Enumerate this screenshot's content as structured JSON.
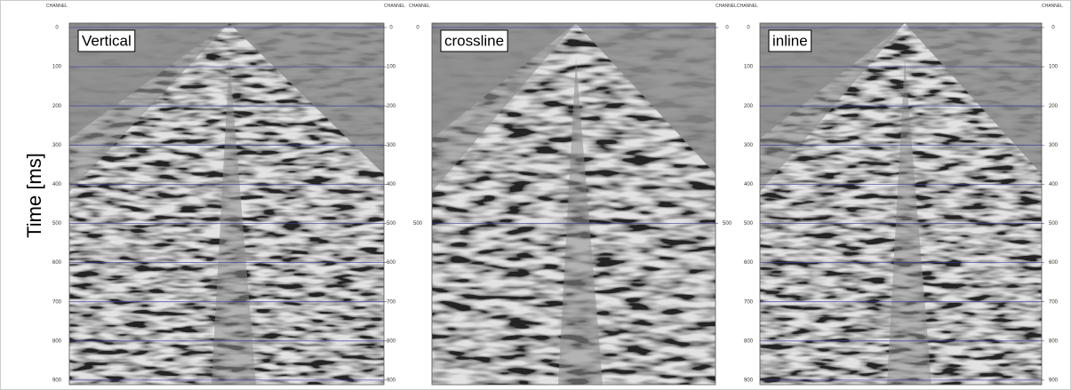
{
  "y_axis_label": "Time [ms]",
  "panels": [
    {
      "label": "Vertical",
      "header_left": "CHANNEL",
      "header_right": "CHANNEL",
      "ticks_left": [
        0,
        100,
        200,
        300,
        400,
        500,
        600,
        700,
        800,
        900
      ],
      "ticks_right": [
        0,
        100,
        200,
        300,
        400,
        500,
        600,
        700,
        800,
        900
      ]
    },
    {
      "label": "crossline",
      "header_left": "CHANNEL",
      "header_right": "CHANNEL",
      "ticks_left": [
        0,
        500
      ],
      "ticks_right": [
        0,
        500
      ]
    },
    {
      "label": "inline",
      "header_left": "CHANNEL",
      "header_right": "CHANNEL",
      "ticks_left": [
        0,
        100,
        200,
        300,
        400,
        500,
        600,
        700,
        800,
        900
      ],
      "ticks_right": [
        0,
        100,
        200,
        300,
        400,
        500,
        600,
        700,
        800,
        900
      ]
    }
  ]
}
